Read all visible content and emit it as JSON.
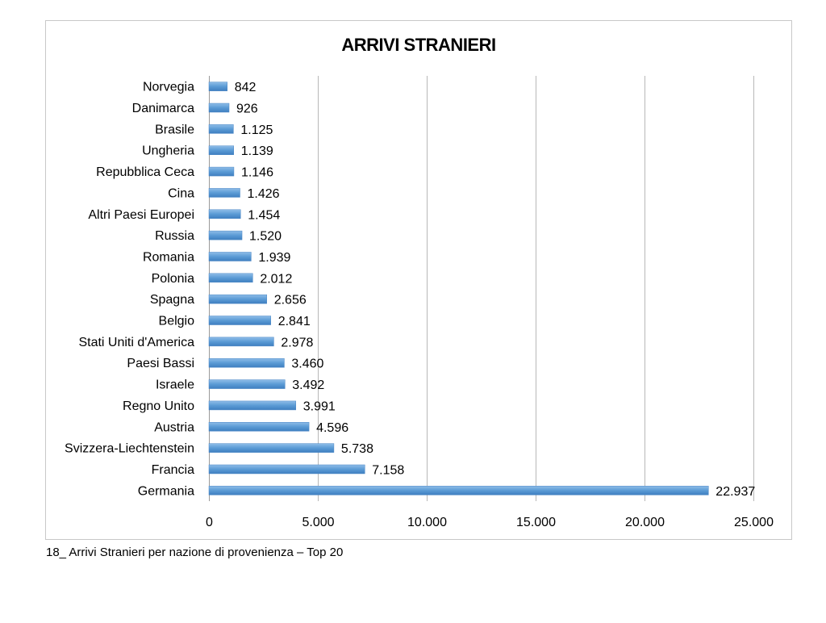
{
  "chart_data": {
    "type": "bar",
    "orientation": "horizontal",
    "title": "ARRIVI STRANIERI",
    "categories": [
      "Norvegia",
      "Danimarca",
      "Brasile",
      "Ungheria",
      "Repubblica Ceca",
      "Cina",
      "Altri Paesi Europei",
      "Russia",
      "Romania",
      "Polonia",
      "Spagna",
      "Belgio",
      "Stati Uniti d'America",
      "Paesi Bassi",
      "Israele",
      "Regno Unito",
      "Austria",
      "Svizzera-Liechtenstein",
      "Francia",
      "Germania"
    ],
    "values": [
      842,
      926,
      1125,
      1139,
      1146,
      1426,
      1454,
      1520,
      1939,
      2012,
      2656,
      2841,
      2978,
      3460,
      3492,
      3991,
      4596,
      5738,
      7158,
      22937
    ],
    "value_labels": [
      "842",
      "926",
      "1.125",
      "1.139",
      "1.146",
      "1.426",
      "1.454",
      "1.520",
      "1.939",
      "2.012",
      "2.656",
      "2.841",
      "2.978",
      "3.460",
      "3.492",
      "3.991",
      "4.596",
      "5.738",
      "7.158",
      "22.937"
    ],
    "xlim": [
      0,
      25000
    ],
    "xticks": [
      0,
      5000,
      10000,
      15000,
      20000,
      25000
    ],
    "xtick_labels": [
      "0",
      "5.000",
      "10.000",
      "15.000",
      "20.000",
      "25.000"
    ],
    "grid": true,
    "bar_color": "#5b9bd5",
    "legend": "none",
    "xlabel": "",
    "ylabel": ""
  },
  "caption": "18_ Arrivi Stranieri per nazione di provenienza – Top 20"
}
